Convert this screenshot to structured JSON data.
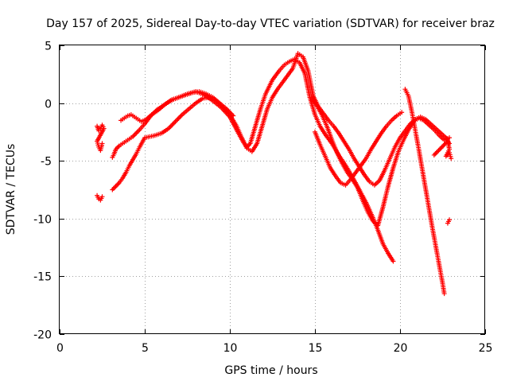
{
  "chart_data": {
    "type": "scatter",
    "title": "Day 157 of 2025, Sidereal Day-to-day VTEC variation (SDTVAR) for receiver braz",
    "xlabel": "GPS time / hours",
    "ylabel": "SDTVAR / TECUs",
    "xlim": [
      0,
      25
    ],
    "ylim": [
      -20,
      5
    ],
    "xticks": [
      "0",
      "5",
      "10",
      "15",
      "20",
      "25"
    ],
    "xtick_values": [
      0,
      5,
      10,
      15,
      20,
      25
    ],
    "yticks": [
      "5",
      "0",
      "-5",
      "-10",
      "-15",
      "-20"
    ],
    "ytick_values": [
      5,
      0,
      -5,
      -10,
      -15,
      -20
    ],
    "grid": true,
    "marker": "plus",
    "color": "#ff0000",
    "series": [
      {
        "x": [
          2.2,
          2.3,
          2.4,
          2.5,
          2.6,
          2.2,
          2.3,
          2.4,
          2.5,
          2.2,
          2.3,
          2.4,
          2.5,
          3.1,
          3.2,
          3.3,
          3.5,
          3.7,
          3.9,
          4.1,
          4.3,
          4.5,
          4.7,
          5.0,
          5.3,
          5.7,
          6.1,
          6.5,
          7.0,
          7.5,
          8.0,
          8.5,
          9.0,
          9.5,
          10.0,
          10.5,
          10.8,
          11.0,
          11.2,
          11.5,
          11.8,
          12.1,
          12.5,
          12.9,
          13.2,
          13.5,
          13.8,
          14.1,
          14.4,
          14.7,
          15.0,
          15.3,
          15.6,
          16.0,
          16.4,
          16.8,
          17.2,
          17.6,
          18.0,
          18.4,
          18.7,
          19.0,
          19.3,
          19.6
        ],
        "y": [
          -2.0,
          -2.4,
          -2.2,
          -1.9,
          -2.2,
          -3.3,
          -3.8,
          -4.1,
          -3.5,
          -8.0,
          -8.3,
          -8.4,
          -8.1,
          -4.7,
          -4.4,
          -4.0,
          -3.7,
          -3.5,
          -3.3,
          -3.1,
          -2.9,
          -2.6,
          -2.3,
          -1.8,
          -1.2,
          -0.6,
          -0.2,
          0.2,
          0.5,
          0.8,
          1.0,
          0.7,
          0.2,
          -0.4,
          -1.2,
          -2.6,
          -3.4,
          -3.8,
          -3.5,
          -2.0,
          -0.5,
          0.8,
          2.0,
          2.8,
          3.3,
          3.6,
          3.8,
          3.5,
          2.6,
          0.5,
          -1.0,
          -2.0,
          -2.7,
          -3.5,
          -4.5,
          -5.4,
          -6.4,
          -7.5,
          -8.6,
          -9.9,
          -11.0,
          -12.2,
          -13.0,
          -13.7
        ]
      },
      {
        "x": [
          3.1,
          3.3,
          3.5,
          3.7,
          3.9,
          4.1,
          4.3,
          4.5,
          4.7,
          5.0,
          5.3,
          5.6,
          6.0,
          6.4,
          6.8,
          7.2,
          7.6,
          8.0,
          8.4,
          8.8,
          9.2,
          9.6,
          10.0,
          10.4,
          10.7,
          11.0,
          11.3,
          11.6,
          11.9,
          12.2,
          12.5,
          12.8,
          13.1,
          13.4,
          13.7,
          14.0,
          14.3,
          14.6,
          14.9,
          15.2,
          15.5,
          15.8,
          16.1,
          16.4,
          16.7,
          17.0,
          17.3,
          17.6,
          17.9,
          18.2,
          18.5,
          18.8,
          19.1,
          19.4,
          19.7,
          20.0,
          20.3,
          20.6,
          20.9,
          21.2,
          21.5,
          21.8,
          22.1,
          22.4,
          22.7,
          22.9
        ],
        "y": [
          -7.5,
          -7.2,
          -6.9,
          -6.5,
          -6.0,
          -5.4,
          -4.9,
          -4.4,
          -3.8,
          -3.0,
          -2.9,
          -2.8,
          -2.6,
          -2.2,
          -1.6,
          -1.0,
          -0.5,
          0.0,
          0.4,
          0.5,
          0.2,
          -0.4,
          -1.0,
          -2.0,
          -3.0,
          -3.9,
          -4.2,
          -3.5,
          -2.0,
          -0.5,
          0.5,
          1.2,
          1.8,
          2.4,
          3.0,
          4.3,
          4.0,
          2.8,
          0.6,
          -0.3,
          -0.9,
          -1.5,
          -2.0,
          -2.6,
          -3.3,
          -4.0,
          -4.8,
          -5.5,
          -6.2,
          -6.8,
          -7.1,
          -6.7,
          -5.8,
          -4.8,
          -3.8,
          -3.0,
          -2.4,
          -1.8,
          -1.4,
          -1.2,
          -1.4,
          -1.8,
          -2.2,
          -2.6,
          -3.0,
          -3.5
        ]
      },
      {
        "x": [
          3.6,
          3.8,
          4.0,
          4.2,
          4.5,
          4.8,
          5.1,
          5.4,
          5.8,
          6.2,
          6.6,
          7.0,
          7.4,
          7.8,
          8.2,
          8.6,
          9.0,
          9.4,
          9.8,
          10.2,
          15.0,
          15.3,
          15.6,
          15.9,
          16.2,
          16.5,
          16.8,
          17.1,
          17.4,
          17.7,
          18.0,
          18.3,
          18.6,
          18.9,
          19.2,
          19.5,
          19.8,
          20.1
        ],
        "y": [
          -1.5,
          -1.3,
          -1.1,
          -1.0,
          -1.3,
          -1.6,
          -1.4,
          -1.0,
          -0.6,
          -0.1,
          0.3,
          0.5,
          0.7,
          0.9,
          1.0,
          0.8,
          0.5,
          0.0,
          -0.5,
          -1.1,
          -2.5,
          -3.6,
          -4.6,
          -5.6,
          -6.3,
          -6.9,
          -7.1,
          -6.6,
          -6.0,
          -5.4,
          -4.8,
          -4.0,
          -3.3,
          -2.6,
          -2.0,
          -1.5,
          -1.1,
          -0.8
        ]
      },
      {
        "x": [
          20.3,
          20.5,
          20.7,
          20.9,
          21.1,
          21.3,
          21.5,
          21.7,
          21.9,
          22.1,
          22.3,
          22.5,
          22.6
        ],
        "y": [
          1.2,
          0.6,
          -0.8,
          -2.4,
          -4.0,
          -5.7,
          -7.4,
          -9.1,
          -10.8,
          -12.4,
          -14.0,
          -15.6,
          -16.5
        ]
      },
      {
        "x": [
          14.8,
          15.1,
          15.4,
          15.7,
          16.0,
          16.3,
          16.6,
          16.9,
          17.2,
          17.5,
          17.8,
          18.1,
          18.4,
          18.7,
          19.0,
          19.3,
          19.6,
          19.9,
          20.2,
          20.5,
          20.8,
          21.1,
          21.4,
          21.7,
          22.0,
          22.3,
          22.6,
          22.9
        ],
        "y": [
          0.5,
          -0.2,
          -1.0,
          -2.0,
          -3.2,
          -4.3,
          -5.2,
          -6.0,
          -6.6,
          -7.3,
          -8.4,
          -9.4,
          -10.2,
          -10.6,
          -9.0,
          -7.2,
          -5.6,
          -4.2,
          -3.2,
          -2.3,
          -1.6,
          -1.3,
          -1.5,
          -1.9,
          -2.3,
          -2.8,
          -3.2,
          -3.0
        ]
      },
      {
        "x": [
          22.0,
          22.2,
          22.4,
          22.6,
          22.8,
          22.9,
          22.7,
          22.9,
          23.0,
          22.8,
          22.9
        ],
        "y": [
          -4.5,
          -4.2,
          -3.9,
          -3.6,
          -3.3,
          -4.0,
          -4.6,
          -4.3,
          -4.8,
          -10.4,
          -10.1
        ]
      }
    ]
  }
}
